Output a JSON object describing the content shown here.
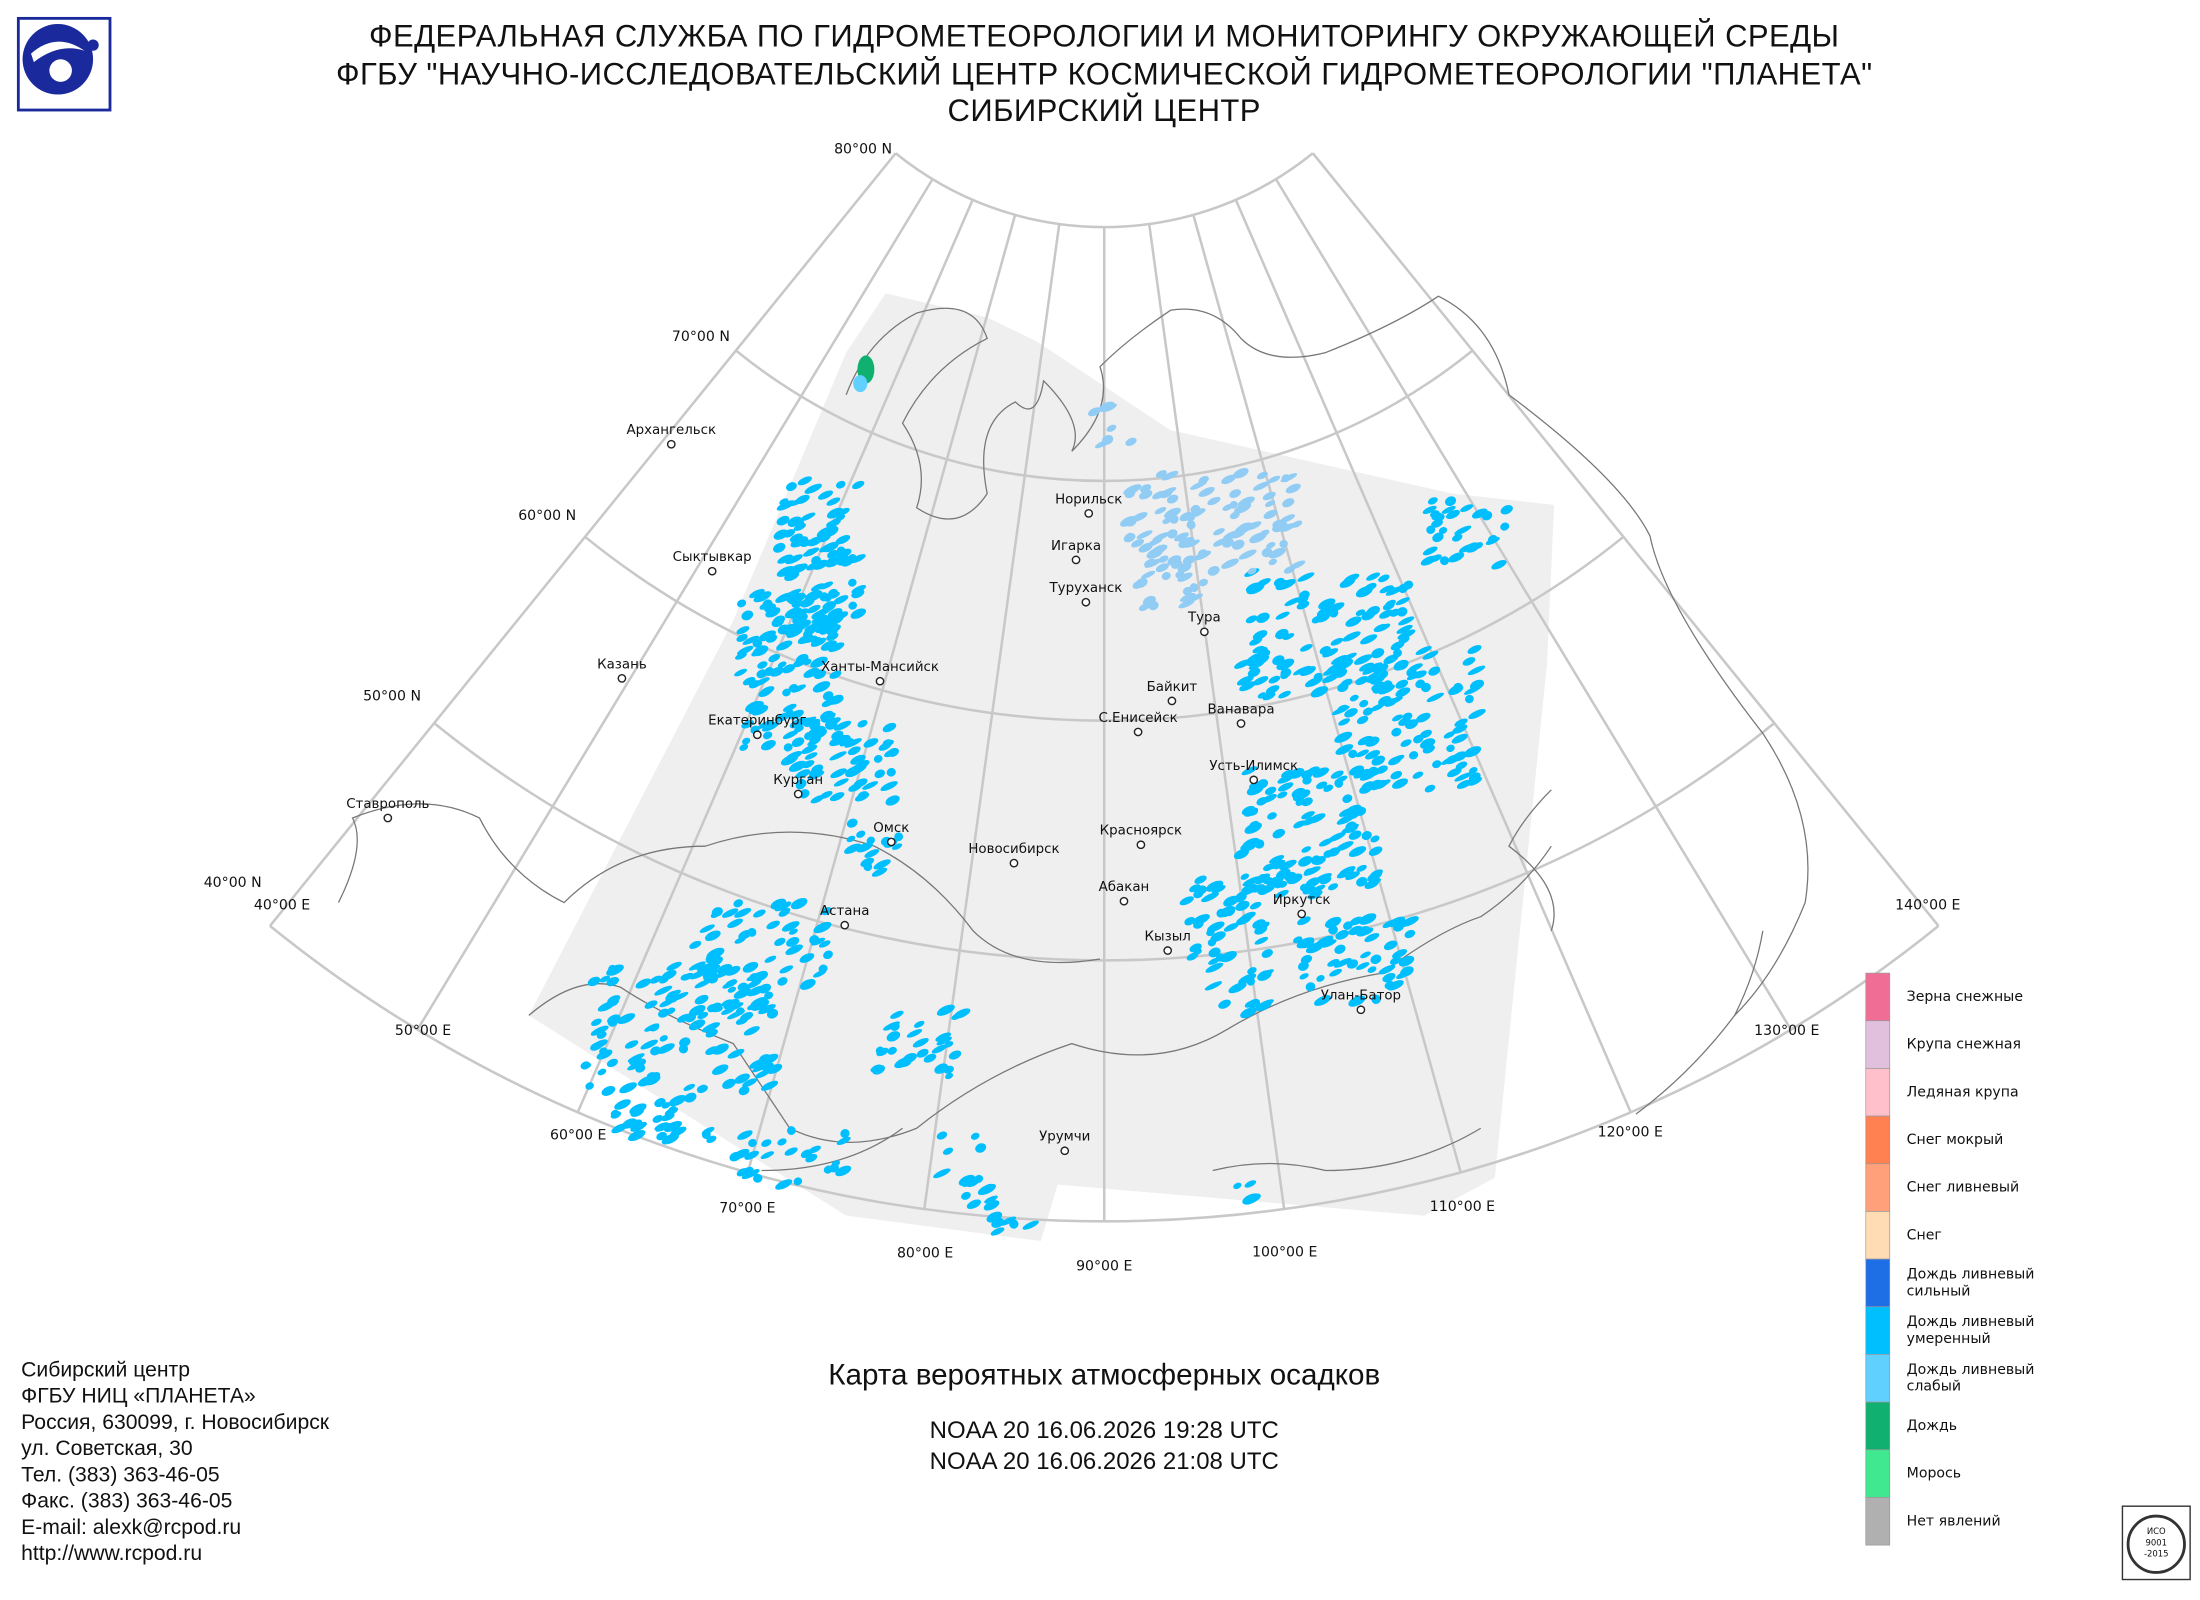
{
  "header": {
    "lines": [
      "ФЕДЕРАЛЬНАЯ СЛУЖБА ПО ГИДРОМЕТЕОРОЛОГИИ И МОНИТОРИНГУ ОКРУЖАЮЩЕЙ СРЕДЫ",
      "ФГБУ \"НАУЧНО-ИССЛЕДОВАТЕЛЬСКИЙ ЦЕНТР КОСМИЧЕСКОЙ ГИДРОМЕТЕОРОЛОГИИ \"ПЛАНЕТА\"",
      "СИБИРСКИЙ ЦЕНТР"
    ]
  },
  "map": {
    "latitude_labels": [
      "80°00 N",
      "70°00 N",
      "60°00 N",
      "50°00 N",
      "40°00 N"
    ],
    "longitude_labels": [
      "40°00 E",
      "50°00 E",
      "60°00 E",
      "70°00 E",
      "80°00 E",
      "90°00 E",
      "100°00 E",
      "110°00 E",
      "120°00 E",
      "130°00 E",
      "140°00 E"
    ],
    "cities": [
      "Архангельск",
      "Сыктывкар",
      "Казань",
      "Ставрополь",
      "Екатеринбург",
      "Курган",
      "Ханты-Мансийск",
      "Омск",
      "Астана",
      "Новосибирск",
      "Норильск",
      "Игарка",
      "Туруханск",
      "Тура",
      "Байкит",
      "С.Енисейск",
      "Ванавара",
      "Усть-Илимск",
      "Красноярск",
      "Абакан",
      "Кызыл",
      "Иркутск",
      "Улан-Батор",
      "Урумчи"
    ]
  },
  "legend": {
    "items": [
      {
        "label": [
          "Зерна снежные"
        ],
        "color": "#f06e96"
      },
      {
        "label": [
          "Крупа снежная"
        ],
        "color": "#e0c0dc"
      },
      {
        "label": [
          "Ледяная крупа"
        ],
        "color": "#ffc0cc"
      },
      {
        "label": [
          "Снег мокрый"
        ],
        "color": "#ff8050"
      },
      {
        "label": [
          "Снег ливневый"
        ],
        "color": "#ffa07a"
      },
      {
        "label": [
          "Снег"
        ],
        "color": "#ffdcb4"
      },
      {
        "label": [
          "Дождь ливневый",
          "сильный"
        ],
        "color": "#1e6ee6"
      },
      {
        "label": [
          "Дождь ливневый",
          "умеренный"
        ],
        "color": "#00bfff"
      },
      {
        "label": [
          "Дождь ливневый",
          "слабый"
        ],
        "color": "#60d0ff"
      },
      {
        "label": [
          "Дождь"
        ],
        "color": "#10b070"
      },
      {
        "label": [
          "Морось"
        ],
        "color": "#40e890"
      },
      {
        "label": [
          "Нет явлений"
        ],
        "color": "#b0b0b0"
      }
    ]
  },
  "footer": {
    "address": [
      "Сибирский центр",
      "ФГБУ НИЦ «ПЛАНЕТА»",
      "Россия, 630099, г. Новосибирск",
      "ул. Советская, 30",
      "Тел. (383) 363-46-05",
      "Факс. (383) 363-46-05",
      "E-mail: alexk@rcpod.ru",
      "http://www.rcpod.ru"
    ],
    "map_title": "Карта вероятных атмосферных осадков",
    "passes": [
      "NOAA 20 16.06.2026  19:28 UTC",
      "NOAA 20 16.06.2026  21:08 UTC"
    ]
  },
  "stamp": {
    "lines": [
      "ИСО",
      "9001",
      "-2015"
    ]
  }
}
